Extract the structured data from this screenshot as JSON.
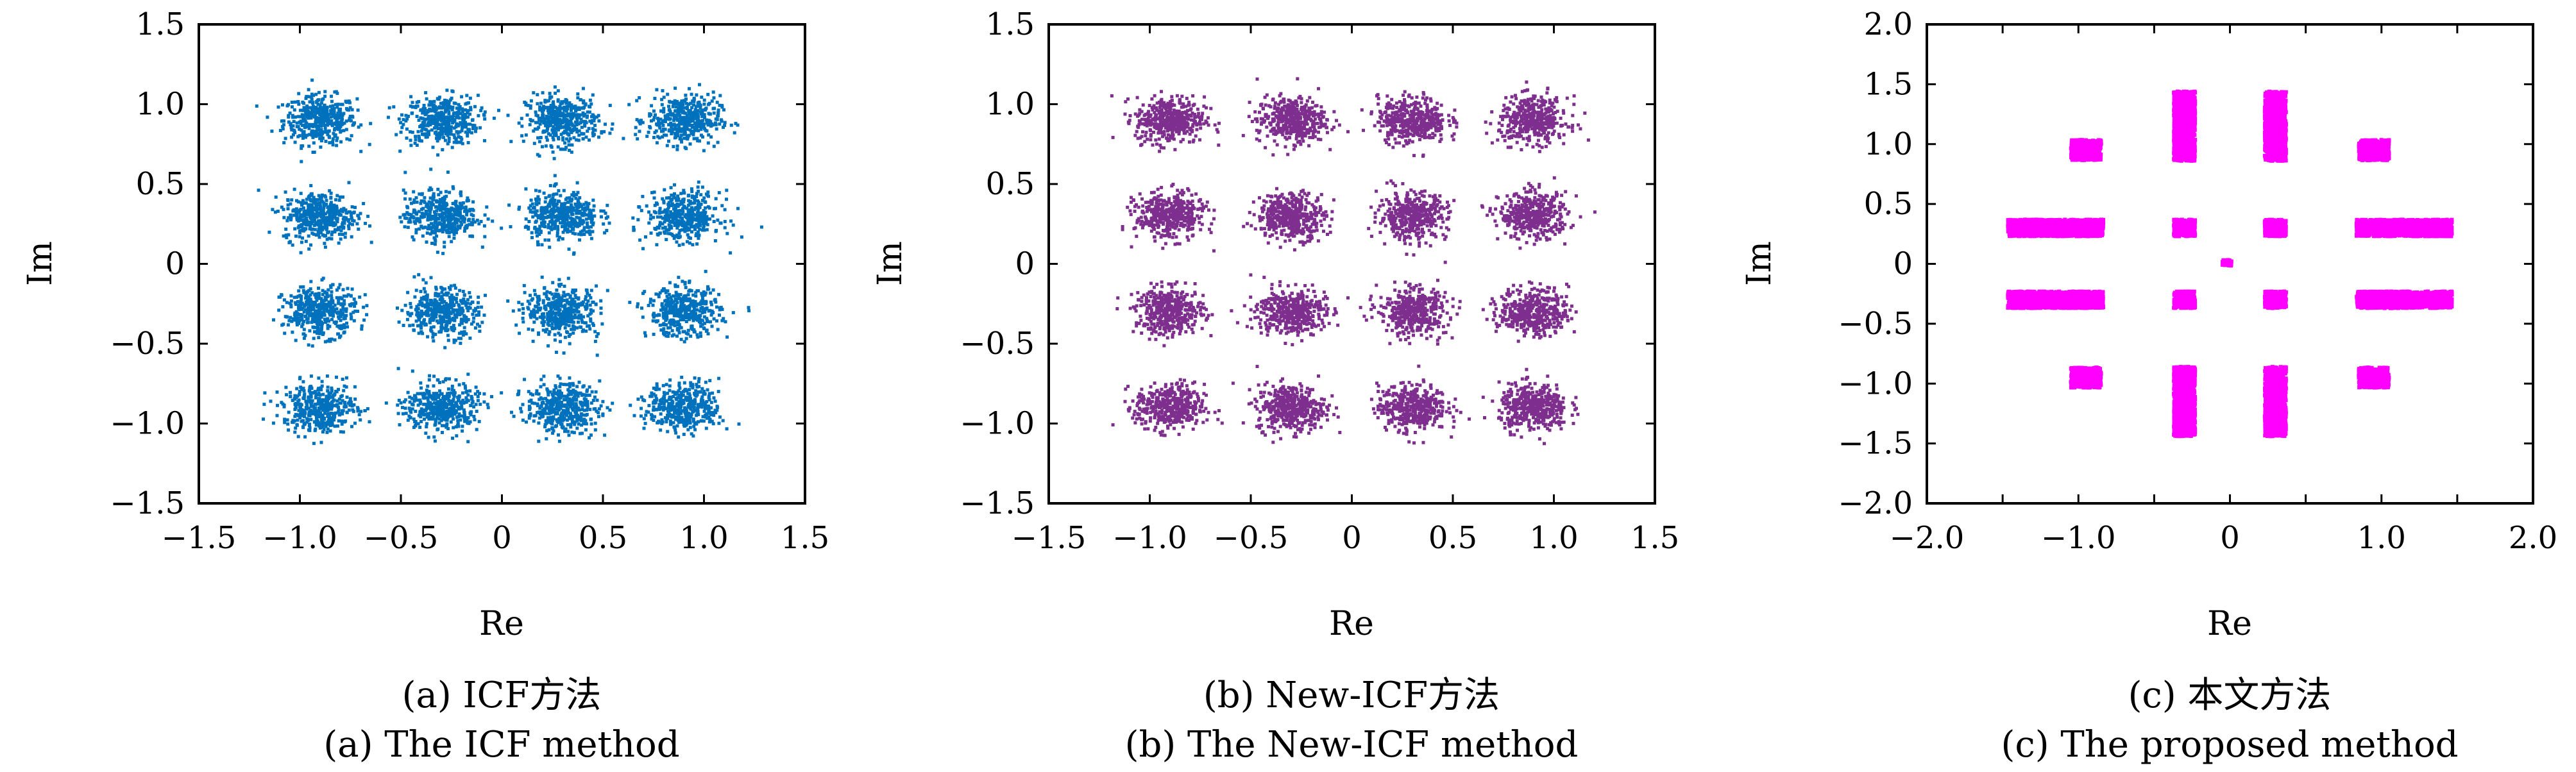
{
  "panels": [
    {
      "caption_zh": "(a) ICF方法",
      "caption_en": "(a) The ICF method"
    },
    {
      "caption_zh": "(b) New-ICF方法",
      "caption_en": "(b) The New-ICF method"
    },
    {
      "caption_zh": "(c) 本文方法",
      "caption_en": "(c) The proposed method"
    }
  ],
  "chart_data": [
    {
      "type": "scatter",
      "title": "",
      "xlabel": "Re",
      "ylabel": "Im",
      "xlim": [
        -1.5,
        1.5
      ],
      "ylim": [
        -1.5,
        1.5
      ],
      "xticks": [
        "−1.5",
        "−1.0",
        "−0.5",
        "0",
        "0.5",
        "1.0",
        "1.5"
      ],
      "xtick_values": [
        -1.5,
        -1.0,
        -0.5,
        0,
        0.5,
        1.0,
        1.5
      ],
      "yticks": [
        "1.5",
        "1.0",
        "0.5",
        "0",
        "−0.5",
        "−1.0",
        "−1.5"
      ],
      "ytick_values": [
        1.5,
        1.0,
        0.5,
        0,
        -0.5,
        -1.0,
        -1.5
      ],
      "grid": false,
      "color": "#0072bd",
      "series": [
        {
          "clusters": [
            {
              "x": -0.9,
              "y": 0.9,
              "spread": 0.09
            },
            {
              "x": -0.3,
              "y": 0.9,
              "spread": 0.09
            },
            {
              "x": 0.3,
              "y": 0.9,
              "spread": 0.09
            },
            {
              "x": 0.9,
              "y": 0.9,
              "spread": 0.09
            },
            {
              "x": -0.9,
              "y": 0.3,
              "spread": 0.09
            },
            {
              "x": -0.3,
              "y": 0.3,
              "spread": 0.09
            },
            {
              "x": 0.3,
              "y": 0.3,
              "spread": 0.09
            },
            {
              "x": 0.9,
              "y": 0.3,
              "spread": 0.09
            },
            {
              "x": -0.9,
              "y": -0.3,
              "spread": 0.09
            },
            {
              "x": -0.3,
              "y": -0.3,
              "spread": 0.09
            },
            {
              "x": 0.3,
              "y": -0.3,
              "spread": 0.09
            },
            {
              "x": 0.9,
              "y": -0.3,
              "spread": 0.09
            },
            {
              "x": -0.9,
              "y": -0.9,
              "spread": 0.09
            },
            {
              "x": -0.3,
              "y": -0.9,
              "spread": 0.09
            },
            {
              "x": 0.3,
              "y": -0.9,
              "spread": 0.09
            },
            {
              "x": 0.9,
              "y": -0.9,
              "spread": 0.09
            }
          ]
        }
      ]
    },
    {
      "type": "scatter",
      "title": "",
      "xlabel": "Re",
      "ylabel": "Im",
      "xlim": [
        -1.5,
        1.5
      ],
      "ylim": [
        -1.5,
        1.5
      ],
      "xticks": [
        "−1.5",
        "−1.0",
        "−0.5",
        "0",
        "0.5",
        "1.0",
        "1.5"
      ],
      "xtick_values": [
        -1.5,
        -1.0,
        -0.5,
        0,
        0.5,
        1.0,
        1.5
      ],
      "yticks": [
        "1.5",
        "1.0",
        "0.5",
        "0",
        "−0.5",
        "−1.0",
        "−1.5"
      ],
      "ytick_values": [
        1.5,
        1.0,
        0.5,
        0,
        -0.5,
        -1.0,
        -1.5
      ],
      "grid": false,
      "color": "#7e2f8e",
      "series": [
        {
          "clusters": [
            {
              "x": -0.9,
              "y": 0.9,
              "spread": 0.085
            },
            {
              "x": -0.3,
              "y": 0.9,
              "spread": 0.085
            },
            {
              "x": 0.3,
              "y": 0.9,
              "spread": 0.085
            },
            {
              "x": 0.9,
              "y": 0.9,
              "spread": 0.085
            },
            {
              "x": -0.9,
              "y": 0.3,
              "spread": 0.085
            },
            {
              "x": -0.3,
              "y": 0.3,
              "spread": 0.085
            },
            {
              "x": 0.3,
              "y": 0.3,
              "spread": 0.085
            },
            {
              "x": 0.9,
              "y": 0.3,
              "spread": 0.085
            },
            {
              "x": -0.9,
              "y": -0.3,
              "spread": 0.085
            },
            {
              "x": -0.3,
              "y": -0.3,
              "spread": 0.085
            },
            {
              "x": 0.3,
              "y": -0.3,
              "spread": 0.085
            },
            {
              "x": 0.9,
              "y": -0.3,
              "spread": 0.085
            },
            {
              "x": -0.9,
              "y": -0.9,
              "spread": 0.085
            },
            {
              "x": -0.3,
              "y": -0.9,
              "spread": 0.085
            },
            {
              "x": 0.3,
              "y": -0.9,
              "spread": 0.085
            },
            {
              "x": 0.9,
              "y": -0.9,
              "spread": 0.085
            }
          ]
        }
      ]
    },
    {
      "type": "scatter",
      "title": "",
      "xlabel": "Re",
      "ylabel": "Im",
      "xlim": [
        -2.0,
        2.0
      ],
      "ylim": [
        -2.0,
        2.0
      ],
      "xticks": [
        "−2.0",
        "−1.0",
        "0",
        "1.0",
        "2.0"
      ],
      "xtick_values": [
        -2.0,
        -1.0,
        0,
        1.0,
        2.0
      ],
      "yticks": [
        "2.0",
        "1.5",
        "1.0",
        "0.5",
        "0",
        "−0.5",
        "−1.0",
        "−1.5",
        "−2.0"
      ],
      "ytick_values": [
        2.0,
        1.5,
        1.0,
        0.5,
        0,
        -0.5,
        -1.0,
        -1.5,
        -2.0
      ],
      "xminor": [
        -1.5,
        -0.5,
        0.5,
        1.5
      ],
      "grid": false,
      "color": "#ff00ff",
      "series": [
        {
          "clusters": [
            {
              "x": -0.3,
              "y": 0.3,
              "w": 0.14,
              "h": 0.14
            },
            {
              "x": 0.3,
              "y": 0.3,
              "w": 0.14,
              "h": 0.14
            },
            {
              "x": -0.3,
              "y": -0.3,
              "w": 0.14,
              "h": 0.14
            },
            {
              "x": 0.3,
              "y": -0.3,
              "w": 0.14,
              "h": 0.14
            },
            {
              "x": -0.95,
              "y": 0.95,
              "w": 0.2,
              "h": 0.17
            },
            {
              "x": 0.95,
              "y": 0.95,
              "w": 0.2,
              "h": 0.17
            },
            {
              "x": -0.95,
              "y": -0.95,
              "w": 0.2,
              "h": 0.17
            },
            {
              "x": 0.95,
              "y": -0.95,
              "w": 0.2,
              "h": 0.17
            },
            {
              "x": -0.3,
              "y": 1.15,
              "w": 0.14,
              "h": 0.58
            },
            {
              "x": 0.3,
              "y": 1.15,
              "w": 0.14,
              "h": 0.58
            },
            {
              "x": -0.3,
              "y": -1.15,
              "w": 0.14,
              "h": 0.58
            },
            {
              "x": 0.3,
              "y": -1.15,
              "w": 0.14,
              "h": 0.58
            },
            {
              "x": -1.15,
              "y": 0.3,
              "w": 0.63,
              "h": 0.14
            },
            {
              "x": 1.15,
              "y": 0.3,
              "w": 0.63,
              "h": 0.14
            },
            {
              "x": -1.15,
              "y": -0.3,
              "w": 0.63,
              "h": 0.14
            },
            {
              "x": 1.15,
              "y": -0.3,
              "w": 0.63,
              "h": 0.14
            },
            {
              "x": -0.02,
              "y": 0.01,
              "w": 0.06,
              "h": 0.05
            }
          ]
        }
      ]
    }
  ]
}
